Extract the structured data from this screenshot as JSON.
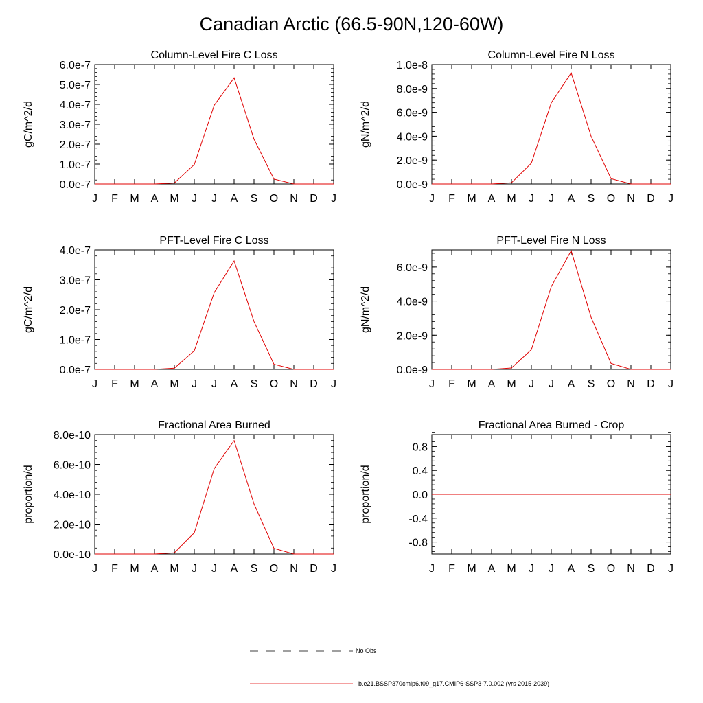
{
  "title": "Canadian Arctic (66.5-90N,120-60W)",
  "colors": {
    "model": "#e00000",
    "axis": "#000000",
    "obs": "#000000"
  },
  "legend": {
    "obs_label": "No Obs",
    "model_label": "b.e21.BSSP370cmip6.f09_g17.CMIP6-SSP3-7.0.002 (yrs 2015-2039)"
  },
  "chart_data": [
    {
      "type": "line",
      "title": "Column-Level Fire C Loss",
      "xlabel": "",
      "ylabel": "gC/m^2/d",
      "categories": [
        "J",
        "F",
        "M",
        "A",
        "M",
        "J",
        "J",
        "A",
        "S",
        "O",
        "N",
        "D",
        "J"
      ],
      "ylim": [
        0,
        6e-07
      ],
      "yticks": [
        0,
        1e-07,
        2e-07,
        3e-07,
        4e-07,
        5e-07,
        6e-07
      ],
      "ytick_labels": [
        "0.0e-7",
        "1.0e-7",
        "2.0e-7",
        "3.0e-7",
        "4.0e-7",
        "5.0e-7",
        "6.0e-7"
      ],
      "series": [
        {
          "name": "b.e21.BSSP370cmip6.f09_g17.CMIP6-SSP3-7.0.002 (yrs 2015-2039)",
          "values": [
            0,
            0,
            0,
            0,
            5e-09,
            9.8e-08,
            3.95e-07,
            5.33e-07,
            2.25e-07,
            2.5e-08,
            0,
            0,
            0
          ]
        }
      ]
    },
    {
      "type": "line",
      "title": "Column-Level Fire N Loss",
      "xlabel": "",
      "ylabel": "gN/m^2/d",
      "categories": [
        "J",
        "F",
        "M",
        "A",
        "M",
        "J",
        "J",
        "A",
        "S",
        "O",
        "N",
        "D",
        "J"
      ],
      "ylim": [
        0,
        1e-08
      ],
      "yticks": [
        0,
        2e-09,
        4e-09,
        6e-09,
        8e-09,
        1e-08
      ],
      "ytick_labels": [
        "0.0e-9",
        "2.0e-9",
        "4.0e-9",
        "6.0e-9",
        "8.0e-9",
        "1.0e-8"
      ],
      "series": [
        {
          "name": "b.e21.BSSP370cmip6.f09_g17.CMIP6-SSP3-7.0.002 (yrs 2015-2039)",
          "values": [
            0,
            0,
            0,
            0,
            1e-10,
            1.75e-09,
            6.8e-09,
            9.3e-09,
            4e-09,
            4.5e-10,
            0,
            0,
            0
          ]
        }
      ]
    },
    {
      "type": "line",
      "title": "PFT-Level Fire C Loss",
      "xlabel": "",
      "ylabel": "gC/m^2/d",
      "categories": [
        "J",
        "F",
        "M",
        "A",
        "M",
        "J",
        "J",
        "A",
        "S",
        "O",
        "N",
        "D",
        "J"
      ],
      "ylim": [
        0,
        4e-07
      ],
      "yticks": [
        0,
        1e-07,
        2e-07,
        3e-07,
        4e-07
      ],
      "ytick_labels": [
        "0.0e-7",
        "1.0e-7",
        "2.0e-7",
        "3.0e-7",
        "4.0e-7"
      ],
      "series": [
        {
          "name": "b.e21.BSSP370cmip6.f09_g17.CMIP6-SSP3-7.0.002 (yrs 2015-2039)",
          "values": [
            0,
            0,
            0,
            0,
            4e-09,
            6.2e-08,
            2.57e-07,
            3.63e-07,
            1.6e-07,
            1.7e-08,
            0,
            0,
            0
          ]
        }
      ]
    },
    {
      "type": "line",
      "title": "PFT-Level Fire N Loss",
      "xlabel": "",
      "ylabel": "gN/m^2/d",
      "categories": [
        "J",
        "F",
        "M",
        "A",
        "M",
        "J",
        "J",
        "A",
        "S",
        "O",
        "N",
        "D",
        "J"
      ],
      "ylim": [
        0,
        7e-09
      ],
      "yticks": [
        0,
        2e-09,
        4e-09,
        6e-09
      ],
      "ytick_labels": [
        "0.0e-9",
        "2.0e-9",
        "4.0e-9",
        "6.0e-9"
      ],
      "series": [
        {
          "name": "b.e21.BSSP370cmip6.f09_g17.CMIP6-SSP3-7.0.002 (yrs 2015-2039)",
          "values": [
            0,
            0,
            0,
            0,
            8e-11,
            1.15e-09,
            4.85e-09,
            6.95e-09,
            3.05e-09,
            3.5e-10,
            0,
            0,
            0
          ]
        }
      ]
    },
    {
      "type": "line",
      "title": "Fractional Area Burned",
      "xlabel": "",
      "ylabel": "proportion/d",
      "categories": [
        "J",
        "F",
        "M",
        "A",
        "M",
        "J",
        "J",
        "A",
        "S",
        "O",
        "N",
        "D",
        "J"
      ],
      "ylim": [
        0,
        8e-10
      ],
      "yticks": [
        0,
        2e-10,
        4e-10,
        6e-10,
        8e-10
      ],
      "ytick_labels": [
        "0.0e-10",
        "2.0e-10",
        "4.0e-10",
        "6.0e-10",
        "8.0e-10"
      ],
      "series": [
        {
          "name": "b.e21.BSSP370cmip6.f09_g17.CMIP6-SSP3-7.0.002 (yrs 2015-2039)",
          "values": [
            0,
            0,
            0,
            0,
            8e-12,
            1.42e-10,
            5.72e-10,
            7.6e-10,
            3.35e-10,
            3.8e-11,
            0,
            0,
            0
          ]
        }
      ]
    },
    {
      "type": "line",
      "title": "Fractional Area Burned - Crop",
      "xlabel": "",
      "ylabel": "proportion/d",
      "categories": [
        "J",
        "F",
        "M",
        "A",
        "M",
        "J",
        "J",
        "A",
        "S",
        "O",
        "N",
        "D",
        "J"
      ],
      "ylim": [
        -1.0,
        1.0
      ],
      "yticks": [
        -0.8,
        -0.4,
        0.0,
        0.4,
        0.8
      ],
      "ytick_labels": [
        "-0.8",
        "-0.4",
        "0.0",
        "0.4",
        "0.8"
      ],
      "series": [
        {
          "name": "b.e21.BSSP370cmip6.f09_g17.CMIP6-SSP3-7.0.002 (yrs 2015-2039)",
          "values": [
            0,
            0,
            0,
            0,
            0,
            0,
            0,
            0,
            0,
            0,
            0,
            0,
            0
          ]
        }
      ]
    }
  ]
}
